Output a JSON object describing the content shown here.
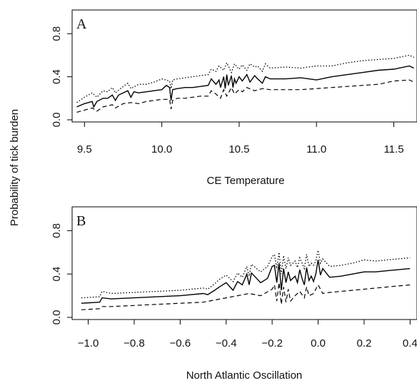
{
  "ylabel": "Probability of tick burden",
  "chart_data": [
    {
      "type": "line",
      "panel_label": "A",
      "xlabel": "CE Temperature",
      "xlim": [
        9.42,
        11.65
      ],
      "ylim": [
        -0.02,
        1.02
      ],
      "xticks": [
        "9.5",
        "10.0",
        "10.5",
        "11.0",
        "11.5"
      ],
      "yticks": [
        "0.0",
        "0.4",
        "0.8"
      ],
      "series": [
        {
          "role": "upper",
          "style": "dotted",
          "x": [
            9.45,
            9.5,
            9.55,
            9.58,
            9.62,
            9.65,
            9.68,
            9.7,
            9.75,
            9.78,
            9.8,
            9.85,
            9.9,
            9.95,
            10.0,
            10.05,
            10.06,
            10.07,
            10.1,
            10.15,
            10.2,
            10.25,
            10.3,
            10.32,
            10.35,
            10.37,
            10.4,
            10.42,
            10.45,
            10.47,
            10.5,
            10.52,
            10.55,
            10.57,
            10.6,
            10.62,
            10.65,
            10.67,
            10.7,
            10.8,
            10.9,
            11.0,
            11.1,
            11.2,
            11.3,
            11.4,
            11.5,
            11.6,
            11.63
          ],
          "y": [
            0.16,
            0.21,
            0.25,
            0.21,
            0.27,
            0.26,
            0.3,
            0.25,
            0.31,
            0.34,
            0.29,
            0.33,
            0.33,
            0.35,
            0.38,
            0.36,
            0.29,
            0.37,
            0.38,
            0.39,
            0.4,
            0.41,
            0.42,
            0.47,
            0.45,
            0.5,
            0.46,
            0.53,
            0.44,
            0.52,
            0.47,
            0.51,
            0.46,
            0.52,
            0.49,
            0.5,
            0.45,
            0.52,
            0.48,
            0.49,
            0.48,
            0.5,
            0.5,
            0.53,
            0.55,
            0.56,
            0.57,
            0.6,
            0.58
          ]
        },
        {
          "role": "fit",
          "style": "solid",
          "x": [
            9.45,
            9.5,
            9.55,
            9.56,
            9.58,
            9.62,
            9.65,
            9.68,
            9.7,
            9.72,
            9.75,
            9.78,
            9.8,
            9.82,
            9.85,
            9.9,
            9.95,
            10.0,
            10.03,
            10.05,
            10.06,
            10.07,
            10.1,
            10.15,
            10.2,
            10.25,
            10.3,
            10.32,
            10.35,
            10.37,
            10.38,
            10.4,
            10.41,
            10.42,
            10.43,
            10.45,
            10.46,
            10.47,
            10.48,
            10.5,
            10.52,
            10.55,
            10.57,
            10.6,
            10.62,
            10.65,
            10.67,
            10.7,
            10.8,
            10.9,
            11.0,
            11.1,
            11.2,
            11.3,
            11.4,
            11.5,
            11.6,
            11.63
          ],
          "y": [
            0.12,
            0.15,
            0.17,
            0.12,
            0.17,
            0.2,
            0.2,
            0.23,
            0.18,
            0.23,
            0.25,
            0.27,
            0.21,
            0.26,
            0.25,
            0.26,
            0.27,
            0.28,
            0.32,
            0.3,
            0.18,
            0.28,
            0.29,
            0.3,
            0.3,
            0.31,
            0.32,
            0.38,
            0.33,
            0.37,
            0.3,
            0.4,
            0.29,
            0.42,
            0.32,
            0.41,
            0.3,
            0.38,
            0.34,
            0.4,
            0.36,
            0.42,
            0.35,
            0.41,
            0.38,
            0.34,
            0.4,
            0.38,
            0.38,
            0.39,
            0.37,
            0.4,
            0.42,
            0.44,
            0.46,
            0.47,
            0.5,
            0.48
          ]
        },
        {
          "role": "lower",
          "style": "dashed",
          "x": [
            9.45,
            9.5,
            9.55,
            9.58,
            9.62,
            9.65,
            9.68,
            9.7,
            9.75,
            9.8,
            9.85,
            9.9,
            9.95,
            10.0,
            10.05,
            10.06,
            10.07,
            10.1,
            10.15,
            10.2,
            10.25,
            10.3,
            10.32,
            10.35,
            10.38,
            10.4,
            10.42,
            10.45,
            10.47,
            10.5,
            10.52,
            10.55,
            10.6,
            10.65,
            10.7,
            10.8,
            10.9,
            11.0,
            11.1,
            11.2,
            11.3,
            11.4,
            11.5,
            11.6,
            11.63
          ],
          "y": [
            0.07,
            0.09,
            0.11,
            0.08,
            0.12,
            0.13,
            0.14,
            0.11,
            0.15,
            0.16,
            0.15,
            0.17,
            0.18,
            0.19,
            0.19,
            0.1,
            0.18,
            0.2,
            0.2,
            0.21,
            0.22,
            0.22,
            0.27,
            0.24,
            0.2,
            0.28,
            0.22,
            0.3,
            0.24,
            0.28,
            0.26,
            0.3,
            0.27,
            0.29,
            0.28,
            0.28,
            0.28,
            0.29,
            0.3,
            0.31,
            0.32,
            0.33,
            0.36,
            0.37,
            0.35
          ]
        }
      ]
    },
    {
      "type": "line",
      "panel_label": "B",
      "xlabel": "North Atlantic Oscillation",
      "xlim": [
        -1.07,
        0.43
      ],
      "ylim": [
        -0.02,
        1.02
      ],
      "xticks": [
        "-1.0",
        "-0.8",
        "-0.6",
        "-0.4",
        "-0.2",
        "0.0",
        "0.2",
        "0.4"
      ],
      "yticks": [
        "0.0",
        "0.4",
        "0.8"
      ],
      "series": [
        {
          "role": "upper",
          "style": "dotted",
          "x": [
            -1.03,
            -0.95,
            -0.94,
            -0.9,
            -0.8,
            -0.7,
            -0.6,
            -0.5,
            -0.48,
            -0.45,
            -0.43,
            -0.4,
            -0.37,
            -0.35,
            -0.33,
            -0.31,
            -0.3,
            -0.29,
            -0.25,
            -0.22,
            -0.2,
            -0.19,
            -0.18,
            -0.17,
            -0.16,
            -0.15,
            -0.14,
            -0.13,
            -0.12,
            -0.1,
            -0.09,
            -0.08,
            -0.07,
            -0.06,
            -0.05,
            -0.04,
            -0.03,
            -0.02,
            -0.01,
            0.0,
            0.01,
            0.02,
            0.05,
            0.1,
            0.15,
            0.2,
            0.25,
            0.3,
            0.35,
            0.4
          ],
          "y": [
            0.18,
            0.19,
            0.24,
            0.22,
            0.23,
            0.24,
            0.25,
            0.27,
            0.26,
            0.31,
            0.35,
            0.39,
            0.33,
            0.41,
            0.37,
            0.47,
            0.38,
            0.49,
            0.42,
            0.47,
            0.56,
            0.58,
            0.45,
            0.6,
            0.4,
            0.57,
            0.45,
            0.55,
            0.48,
            0.52,
            0.46,
            0.55,
            0.5,
            0.45,
            0.58,
            0.47,
            0.5,
            0.48,
            0.52,
            0.62,
            0.5,
            0.54,
            0.47,
            0.48,
            0.5,
            0.53,
            0.52,
            0.53,
            0.54,
            0.55
          ]
        },
        {
          "role": "fit",
          "style": "solid",
          "x": [
            -1.03,
            -0.95,
            -0.94,
            -0.9,
            -0.8,
            -0.7,
            -0.6,
            -0.5,
            -0.48,
            -0.45,
            -0.43,
            -0.4,
            -0.37,
            -0.35,
            -0.33,
            -0.31,
            -0.3,
            -0.29,
            -0.25,
            -0.22,
            -0.2,
            -0.19,
            -0.18,
            -0.17,
            -0.16,
            -0.15,
            -0.14,
            -0.13,
            -0.12,
            -0.1,
            -0.09,
            -0.08,
            -0.07,
            -0.06,
            -0.05,
            -0.04,
            -0.03,
            -0.02,
            -0.01,
            0.0,
            0.01,
            0.02,
            0.05,
            0.1,
            0.15,
            0.2,
            0.25,
            0.3,
            0.35,
            0.4
          ],
          "y": [
            0.13,
            0.14,
            0.18,
            0.17,
            0.18,
            0.19,
            0.2,
            0.22,
            0.21,
            0.25,
            0.28,
            0.32,
            0.25,
            0.33,
            0.3,
            0.4,
            0.3,
            0.41,
            0.32,
            0.36,
            0.47,
            0.48,
            0.32,
            0.5,
            0.25,
            0.45,
            0.32,
            0.42,
            0.34,
            0.38,
            0.32,
            0.44,
            0.36,
            0.3,
            0.46,
            0.34,
            0.38,
            0.33,
            0.4,
            0.53,
            0.39,
            0.45,
            0.37,
            0.38,
            0.4,
            0.42,
            0.42,
            0.43,
            0.44,
            0.45
          ]
        },
        {
          "role": "lower",
          "style": "dashed",
          "x": [
            -1.03,
            -0.95,
            -0.94,
            -0.9,
            -0.8,
            -0.7,
            -0.6,
            -0.5,
            -0.45,
            -0.4,
            -0.35,
            -0.3,
            -0.25,
            -0.2,
            -0.19,
            -0.18,
            -0.17,
            -0.16,
            -0.15,
            -0.14,
            -0.13,
            -0.12,
            -0.1,
            -0.08,
            -0.06,
            -0.05,
            -0.04,
            -0.02,
            0.0,
            0.02,
            0.05,
            0.1,
            0.15,
            0.2,
            0.25,
            0.3,
            0.35,
            0.4
          ],
          "y": [
            0.07,
            0.08,
            0.1,
            0.1,
            0.11,
            0.12,
            0.13,
            0.14,
            0.16,
            0.18,
            0.2,
            0.22,
            0.2,
            0.26,
            0.3,
            0.15,
            0.32,
            0.12,
            0.28,
            0.14,
            0.26,
            0.15,
            0.2,
            0.24,
            0.18,
            0.28,
            0.2,
            0.22,
            0.3,
            0.22,
            0.23,
            0.24,
            0.25,
            0.26,
            0.27,
            0.28,
            0.29,
            0.3
          ]
        }
      ]
    }
  ]
}
